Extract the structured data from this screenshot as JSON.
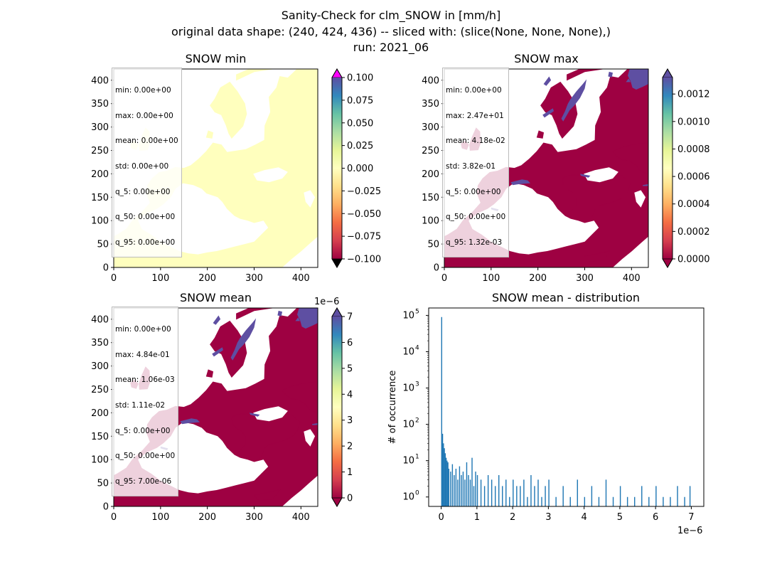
{
  "figure": {
    "title_lines": [
      "Sanity-Check for clm_SNOW in [mm/h]",
      "original data shape: (240, 424, 436) -- sliced with: (slice(None, None, None),)",
      "run: 2021_06"
    ]
  },
  "panels": [
    {
      "title": "SNOW min",
      "stats": [
        "min: 0.00e+00",
        "max: 0.00e+00",
        "mean: 0.00e+00",
        "std: 0.00e+00",
        "q_5: 0.00e+00",
        "q_50: 0.00e+00",
        "q_95: 0.00e+00"
      ],
      "map_xticks": [
        "0",
        "100",
        "200",
        "300",
        "400"
      ],
      "map_yticks": [
        "0",
        "50",
        "100",
        "150",
        "200",
        "250",
        "300",
        "350",
        "400"
      ],
      "colorbar": {
        "ticks": [
          "-0.100",
          "-0.075",
          "-0.050",
          "-0.025",
          "0.000",
          "0.025",
          "0.050",
          "0.075",
          "0.100"
        ],
        "range": [
          -0.1,
          0.1
        ],
        "offset_text": "",
        "under_color": "#000000",
        "over_color": "#ff00ff"
      },
      "map_color": "#ffffbe",
      "snow_cells": false
    },
    {
      "title": "SNOW max",
      "stats": [
        "min: 0.00e+00",
        "max: 2.47e+01",
        "mean: 4.18e-02",
        "std: 3.82e-01",
        "q_5: 0.00e+00",
        "q_50: 0.00e+00",
        "q_95: 1.32e-03"
      ],
      "map_xticks": [
        "0",
        "100",
        "200",
        "300",
        "400"
      ],
      "map_yticks": [
        "0",
        "50",
        "100",
        "150",
        "200",
        "250",
        "300",
        "350",
        "400"
      ],
      "colorbar": {
        "ticks": [
          "0.0000",
          "0.0002",
          "0.0004",
          "0.0006",
          "0.0008",
          "0.0010",
          "0.0012"
        ],
        "range": [
          0,
          0.00132
        ],
        "offset_text": "",
        "under_color": "#9e0142",
        "over_color": "#5e4fa2"
      },
      "map_color": "#9e0142",
      "snow_cells": true
    },
    {
      "title": "SNOW mean",
      "stats": [
        "min: 0.00e+00",
        "max: 4.84e-01",
        "mean: 1.06e-03",
        "std: 1.11e-02",
        "q_5: 0.00e+00",
        "q_50: 0.00e+00",
        "q_95: 7.00e-06"
      ],
      "map_xticks": [
        "0",
        "100",
        "200",
        "300",
        "400"
      ],
      "map_yticks": [
        "0",
        "50",
        "100",
        "150",
        "200",
        "250",
        "300",
        "350",
        "400"
      ],
      "colorbar": {
        "ticks": [
          "0",
          "1",
          "2",
          "3",
          "4",
          "5",
          "6",
          "7"
        ],
        "range": [
          0,
          7
        ],
        "offset_text": "1e−6",
        "under_color": "#9e0142",
        "over_color": "#5e4fa2"
      },
      "map_color": "#9e0142",
      "snow_cells": true
    }
  ],
  "chart_data": {
    "type": "bar",
    "title": "SNOW mean - distribution",
    "xlabel": "",
    "ylabel": "# of occurrence",
    "x_offset_text": "1e−6",
    "xticks": [
      "0",
      "1",
      "2",
      "3",
      "4",
      "5",
      "6",
      "7"
    ],
    "yticks": [
      "10^0",
      "10^1",
      "10^2",
      "10^3",
      "10^4",
      "10^5"
    ],
    "xlim": [
      -0.35,
      7.35
    ],
    "ylim": [
      0.55,
      160000
    ],
    "yscale": "log",
    "bar_color": "#1f77b4",
    "bins_x_e6": [
      0.0,
      0.025,
      0.05,
      0.075,
      0.1,
      0.125,
      0.15,
      0.175,
      0.2,
      0.25,
      0.3,
      0.35,
      0.4,
      0.45,
      0.5,
      0.55,
      0.6,
      0.65,
      0.7,
      0.75,
      0.8,
      0.85,
      0.9,
      0.95,
      1.0,
      1.1,
      1.2,
      1.3,
      1.4,
      1.5,
      1.6,
      1.7,
      1.8,
      1.9,
      2.0,
      2.1,
      2.2,
      2.3,
      2.4,
      2.5,
      2.6,
      2.7,
      2.8,
      2.9,
      3.0,
      3.2,
      3.4,
      3.6,
      3.8,
      4.0,
      4.2,
      4.4,
      4.6,
      4.8,
      5.0,
      5.2,
      5.4,
      5.6,
      5.8,
      6.0,
      6.2,
      6.4,
      6.6,
      6.8,
      6.95
    ],
    "counts": [
      90000,
      55,
      30,
      22,
      16,
      12,
      10,
      9,
      6,
      5,
      8,
      4,
      6,
      3,
      7,
      4,
      5,
      3,
      9,
      4,
      3,
      12,
      2,
      5,
      4,
      3,
      2,
      4,
      3,
      2,
      4,
      2,
      3,
      1,
      3,
      2,
      2,
      3,
      1,
      4,
      2,
      3,
      1,
      2,
      3,
      1,
      2,
      1,
      3,
      1,
      2,
      1,
      3,
      1,
      2,
      1,
      1,
      2,
      1,
      2,
      1,
      1,
      2,
      1,
      2
    ]
  }
}
